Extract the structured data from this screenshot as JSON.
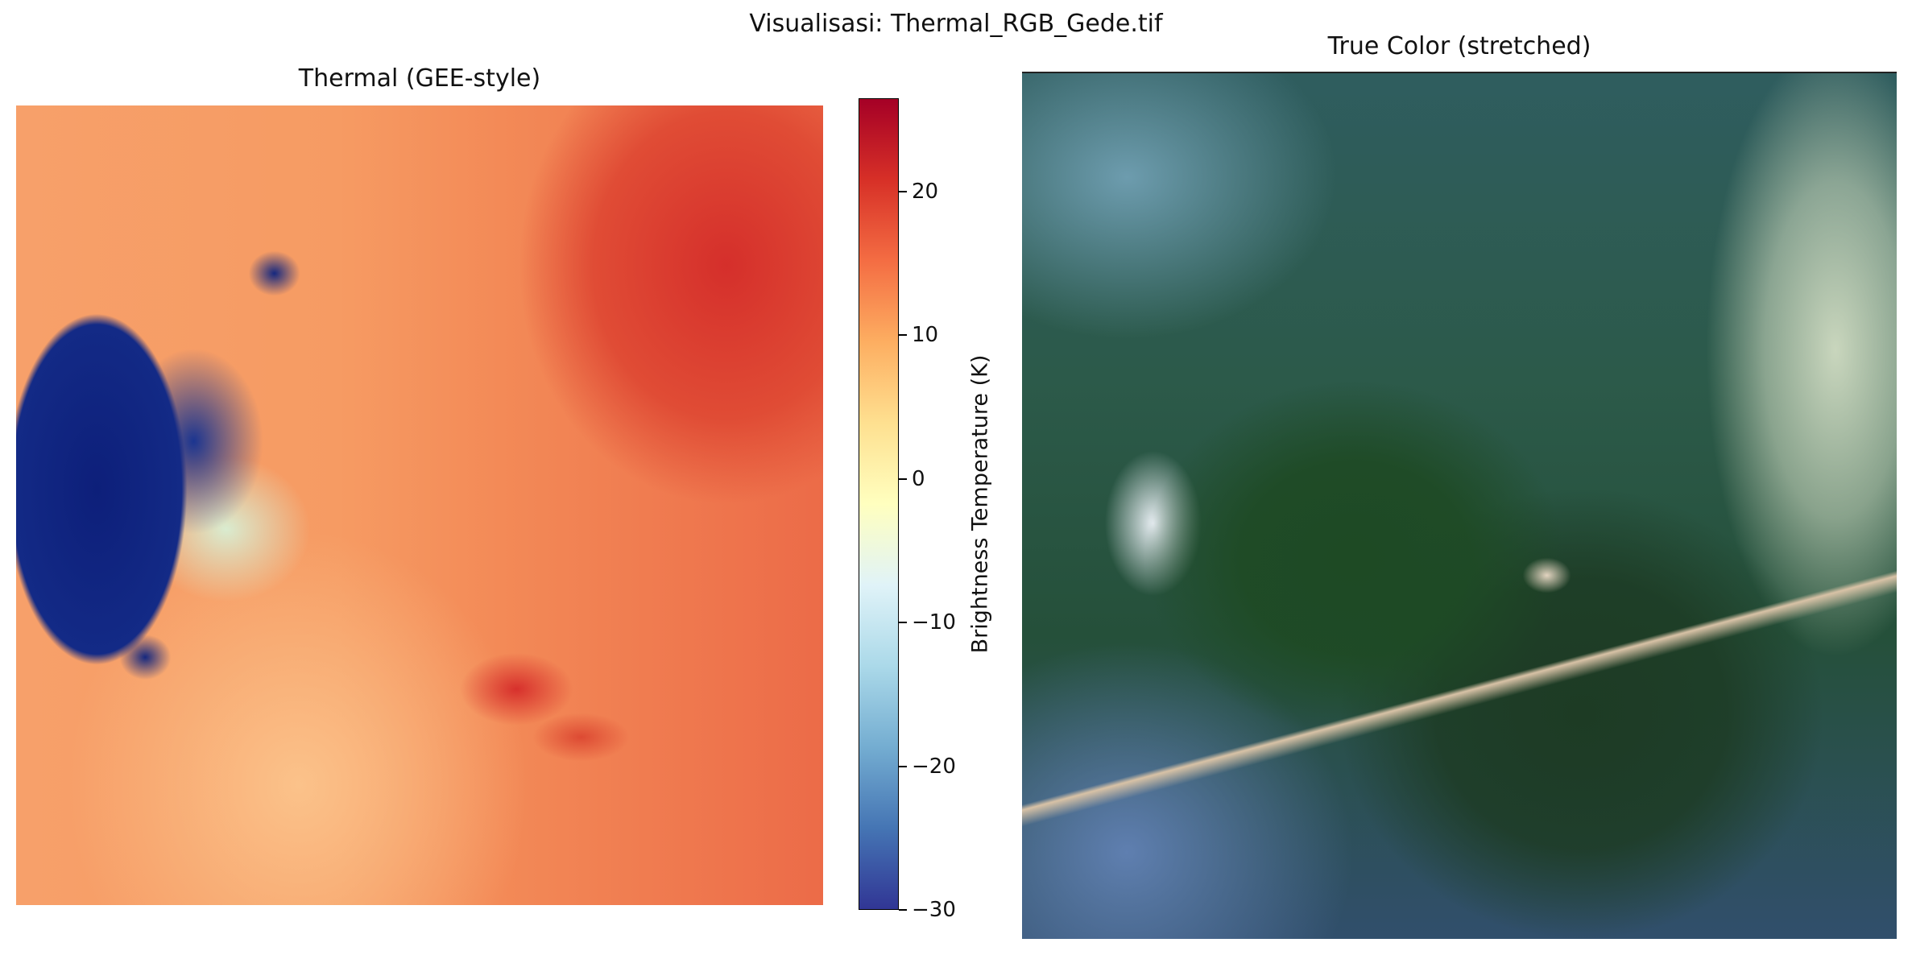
{
  "figure": {
    "suptitle": "Visualisasi: Thermal_RGB_Gede.tif"
  },
  "chart_data": [
    {
      "type": "heatmap",
      "title": "Thermal (GEE-style)",
      "colormap": "RdYlBu_r",
      "colorbar": {
        "label": "Brightness Temperature (K)",
        "range": [
          -30,
          26.5
        ],
        "ticks": [
          -30,
          -20,
          -10,
          0,
          10,
          20
        ],
        "tick_labels": [
          "−30",
          "−20",
          "−10",
          "0",
          "10",
          "20"
        ]
      },
      "axes_visible": false,
      "colors": {
        "low": "#313695",
        "mid": "#ffffbf",
        "high": "#a50026"
      }
    },
    {
      "type": "image",
      "title": "True Color (stretched)",
      "axes_visible": false
    }
  ]
}
